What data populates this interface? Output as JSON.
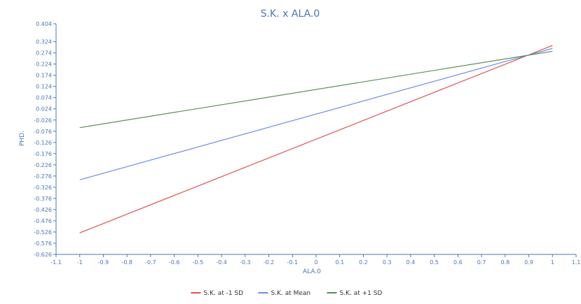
{
  "chart_data": {
    "type": "line",
    "title": "S.K. x ALA.0",
    "xlabel": "ALA.0",
    "ylabel": "PHD.",
    "xlim": [
      -1.1,
      1.1
    ],
    "ylim": [
      -0.626,
      0.404
    ],
    "x_ticks": [
      "-1.1",
      "-1",
      "-0.9",
      "-0.8",
      "-0.7",
      "-0.6",
      "-0.5",
      "-0.4",
      "-0.3",
      "-0.2",
      "-0.1",
      "0",
      "0.1",
      "0.2",
      "0.3",
      "0.4",
      "0.5",
      "0.6",
      "0.7",
      "0.8",
      "0.9",
      "1",
      "1.1"
    ],
    "y_ticks": [
      "0.404",
      "0.324",
      "0.274",
      "0.224",
      "0.174",
      "0.124",
      "0.074",
      "0.024",
      "-0.026",
      "-0.076",
      "-0.126",
      "-0.176",
      "-0.226",
      "-0.276",
      "-0.326",
      "-0.376",
      "-0.426",
      "-0.476",
      "-0.526",
      "-0.576",
      "-0.626"
    ],
    "grid": false,
    "legend_position": "bottom",
    "series": [
      {
        "name": "S.K. at -1 SD",
        "color": "#e05050",
        "x": [
          -1,
          1
        ],
        "y": [
          -0.53,
          0.307
        ]
      },
      {
        "name": "S.K. at Mean",
        "color": "#6d8cef",
        "x": [
          -1,
          1
        ],
        "y": [
          -0.293,
          0.294
        ]
      },
      {
        "name": "S.K. at +1 SD",
        "color": "#5a8f5a",
        "x": [
          -1,
          1
        ],
        "y": [
          -0.06,
          0.281
        ]
      }
    ]
  }
}
